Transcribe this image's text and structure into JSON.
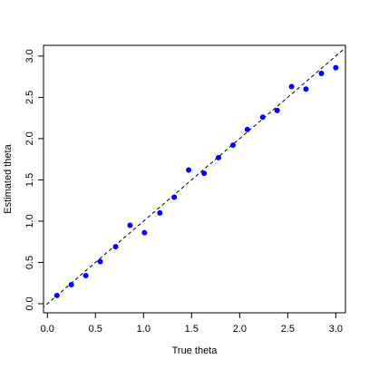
{
  "chart_data": {
    "type": "scatter",
    "xlabel": "True theta",
    "ylabel": "Estimated theta",
    "x": [
      0.1,
      0.25,
      0.4,
      0.55,
      0.71,
      0.86,
      1.01,
      1.17,
      1.32,
      1.47,
      1.63,
      1.78,
      1.93,
      2.08,
      2.24,
      2.39,
      2.54,
      2.69,
      2.85,
      3.0
    ],
    "series": [
      {
        "color": "#0000ff",
        "values": [
          0.1,
          0.23,
          0.34,
          0.51,
          0.69,
          0.95,
          0.86,
          1.1,
          1.29,
          1.62,
          1.58,
          1.77,
          1.92,
          2.11,
          2.26,
          2.34,
          2.63,
          2.6,
          2.79,
          2.86
        ]
      }
    ],
    "xlim": [
      -0.04,
      3.1
    ],
    "ylim": [
      -0.11,
      3.13
    ],
    "xticks": [
      {
        "value": 0,
        "label": "0.0"
      },
      0.5,
      {
        "value": 1,
        "label": "1.0"
      },
      1.5,
      {
        "value": 2,
        "label": "2.0"
      },
      2.5,
      {
        "value": 3,
        "label": "3.0"
      }
    ],
    "yticks": [
      {
        "value": 0,
        "label": "0.0"
      },
      0.5,
      {
        "value": 1,
        "label": "1.0"
      },
      1.5,
      {
        "value": 2,
        "label": "2.0"
      },
      2.5,
      {
        "value": 3,
        "label": "3.0"
      }
    ],
    "identity_line": true,
    "grid": false
  }
}
